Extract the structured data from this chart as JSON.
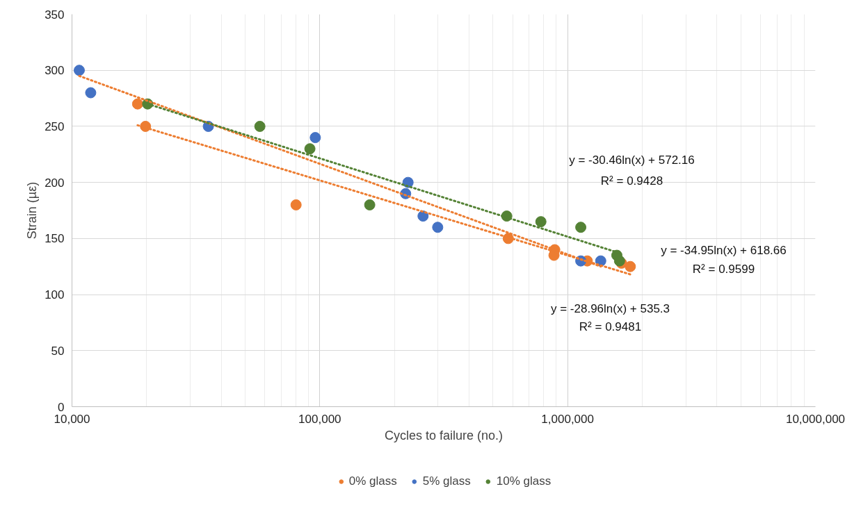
{
  "chart_data": {
    "type": "scatter",
    "xlabel": "Cycles to failure (no.)",
    "ylabel": "Strain (µε)",
    "log": "x",
    "xlim": [
      10000,
      10000000
    ],
    "xticks": [
      {
        "value": 10000,
        "label": "10,000"
      },
      {
        "value": 100000,
        "label": "100,000"
      },
      {
        "value": 1000000,
        "label": "1,000,000"
      },
      {
        "value": 10000000,
        "label": "10,000,000"
      }
    ],
    "ylim": [
      0,
      350
    ],
    "yticks": [
      0,
      50,
      100,
      150,
      200,
      250,
      300,
      350
    ],
    "grid": true,
    "legend": "bottom",
    "marker": "circle",
    "series": [
      {
        "name": "0% glass",
        "color": "#ed7d31",
        "x": [
          18400,
          19800,
          80200,
          576000,
          887000,
          881000,
          1200000,
          1650000,
          1790000
        ],
        "values": [
          270,
          250,
          180,
          150,
          140,
          135,
          130,
          128,
          125
        ]
      },
      {
        "name": "5% glass",
        "color": "#4472c4",
        "x": [
          10700,
          11900,
          35500,
          95900,
          227000,
          222000,
          261000,
          299000,
          1130000,
          1360000
        ],
        "values": [
          300,
          280,
          250,
          240,
          200,
          190,
          170,
          160,
          130,
          130
        ]
      },
      {
        "name": "10% glass",
        "color": "#548235",
        "x": [
          20200,
          57300,
          91200,
          159000,
          568000,
          780000,
          1130000,
          1580000,
          1620000
        ],
        "values": [
          270,
          250,
          230,
          180,
          170,
          165,
          160,
          135,
          130
        ]
      },
      {
        "type": "line",
        "marker": "none",
        "line_style": "dotted",
        "color": "#ed7d31",
        "x": [
          18400,
          1790000
        ],
        "values": [
          251,
          118
        ]
      },
      {
        "type": "line",
        "marker": "none",
        "line_style": "dotted",
        "color": "#ed7d31",
        "x": [
          10700,
          1360000
        ],
        "values": [
          295,
          125
        ]
      },
      {
        "type": "line",
        "marker": "none",
        "line_style": "dotted",
        "color": "#548235",
        "x": [
          20200,
          1620000
        ],
        "values": [
          270,
          137
        ]
      }
    ],
    "annotations": [
      "y = -30.46ln(x) + 572.16",
      "R² = 0.9428",
      "y = -34.95ln(x) + 618.66",
      "R² = 0.9599",
      "y = -28.96ln(x) + 535.3",
      "R² = 0.9481"
    ]
  }
}
